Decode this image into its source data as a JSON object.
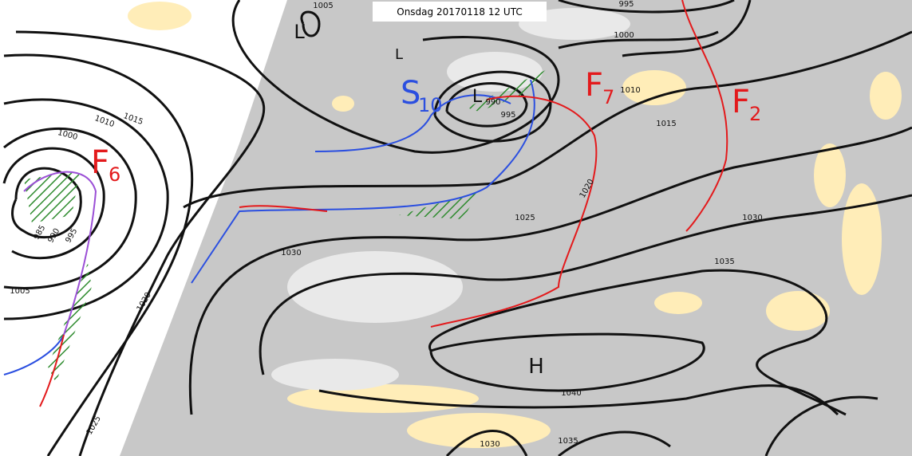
{
  "header": {
    "title": "Onsdag 20170118 12 UTC"
  },
  "pressure_centers": [
    {
      "label": "L"
    },
    {
      "label": "L"
    },
    {
      "label": "L"
    },
    {
      "label": "H"
    }
  ],
  "fronts": [
    {
      "label": "F",
      "index": "6",
      "color": "#e31a1c"
    },
    {
      "label": "F",
      "index": "7",
      "color": "#e31a1c"
    },
    {
      "label": "F",
      "index": "2",
      "color": "#e31a1c"
    },
    {
      "label": "S",
      "index": "10",
      "color": "#2b4fe0"
    }
  ],
  "isobar_labels": [
    "1005",
    "995",
    "1000",
    "1010",
    "1015",
    "1015",
    "1010",
    "1000",
    "985",
    "990",
    "995",
    "1005",
    "1020",
    "1025",
    "1030",
    "1025",
    "1030",
    "1035",
    "1040",
    "1030",
    "1035",
    "990",
    "995",
    "1020"
  ]
}
